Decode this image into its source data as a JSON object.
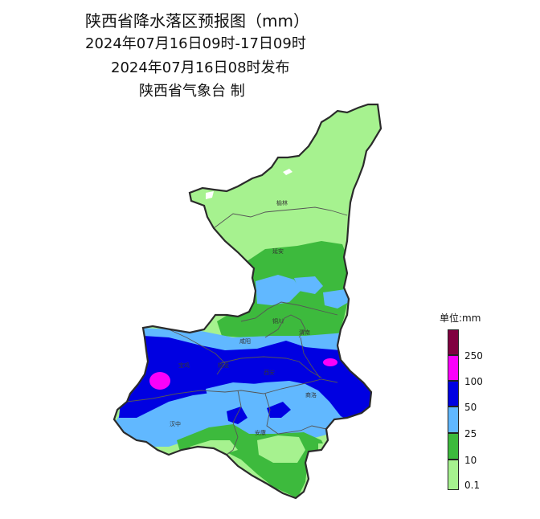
{
  "title": {
    "line1": "陕西省降水落区预报图（mm）",
    "line2": "2024年07月16日09时-17日09时",
    "line3": "2024年07月16日08时发布",
    "line4": "陕西省气象台 制"
  },
  "cities": [
    {
      "name": "榆林"
    },
    {
      "name": "延安"
    },
    {
      "name": "铜川"
    },
    {
      "name": "渭南"
    },
    {
      "name": "咸阳"
    },
    {
      "name": "宝鸡"
    },
    {
      "name": "杨凌"
    },
    {
      "name": "西安"
    },
    {
      "name": "商洛"
    },
    {
      "name": "汉中"
    },
    {
      "name": "安康"
    }
  ],
  "legend": {
    "title": "单位:mm",
    "classes": [
      {
        "label": "0.1",
        "color": "#a6f28f"
      },
      {
        "label": "10",
        "color": "#3dba3d"
      },
      {
        "label": "25",
        "color": "#61b8ff"
      },
      {
        "label": "50",
        "color": "#0000e1"
      },
      {
        "label": "100",
        "color": "#fa00fa"
      },
      {
        "label": "250",
        "color": "#800040"
      }
    ]
  }
}
